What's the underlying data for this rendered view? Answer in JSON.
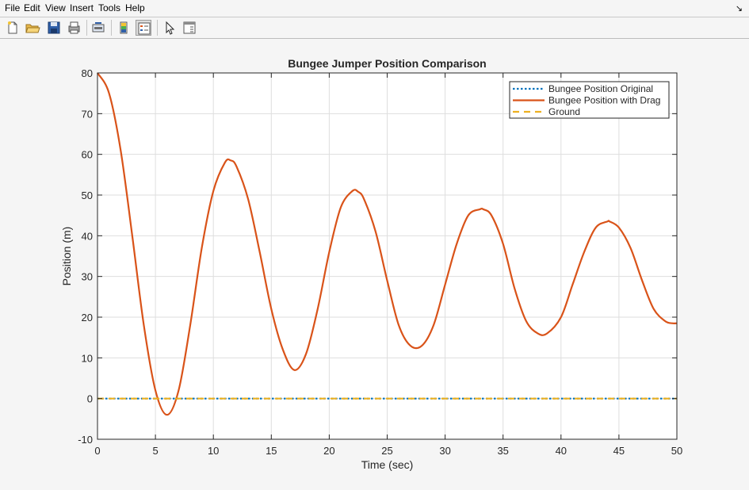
{
  "menubar": {
    "items": [
      "File",
      "Edit",
      "View",
      "Insert",
      "Tools",
      "Help"
    ]
  },
  "toolbar": {
    "buttons": [
      "new-figure-icon",
      "open-file-icon",
      "save-icon",
      "print-icon",
      "link-plot-icon",
      "colorbar-icon",
      "legend-icon",
      "pointer-icon",
      "property-inspector-icon"
    ]
  },
  "colors": {
    "original": "#0072bd",
    "drag": "#d95319",
    "ground": "#edb120"
  },
  "chart_data": {
    "type": "line",
    "title": "Bungee Jumper Position Comparison",
    "xlabel": "Time (sec)",
    "ylabel": "Position (m)",
    "xlim": [
      0,
      50
    ],
    "ylim": [
      -10,
      80
    ],
    "xticks": [
      0,
      5,
      10,
      15,
      20,
      25,
      30,
      35,
      40,
      45,
      50
    ],
    "yticks": [
      -10,
      0,
      10,
      20,
      30,
      40,
      50,
      60,
      70,
      80
    ],
    "grid": true,
    "legend_position": "top-right",
    "series": [
      {
        "name": "Bungee Position Original",
        "style": "dotted",
        "x": [
          0,
          50
        ],
        "y": [
          0,
          0
        ]
      },
      {
        "name": "Bungee Position with Drag",
        "style": "solid",
        "x": [
          0,
          1,
          2,
          3,
          4,
          5,
          6,
          7,
          8,
          9,
          10,
          11,
          11.5,
          12,
          13,
          14,
          15,
          16,
          17,
          18,
          19,
          20,
          21,
          22,
          22.5,
          23,
          24,
          25,
          26,
          27,
          28,
          29,
          30,
          31,
          32,
          33,
          33.3,
          34,
          35,
          36,
          37,
          38,
          38.8,
          40,
          41,
          42,
          43,
          44,
          44.2,
          45,
          46,
          47,
          48,
          49,
          49.6,
          50
        ],
        "y": [
          80,
          75,
          61,
          40,
          18,
          2,
          -4,
          2,
          18,
          37,
          51,
          58,
          58.5,
          57,
          49,
          36,
          22,
          12,
          7,
          11,
          22,
          36,
          47,
          51,
          50.8,
          49,
          41,
          29,
          18,
          13,
          13,
          18,
          28,
          38,
          45,
          46.5,
          46.5,
          45,
          38,
          27,
          19,
          16,
          16,
          20,
          28,
          36,
          42,
          43.5,
          43.5,
          42,
          37,
          29,
          22,
          19,
          18.5,
          18.5
        ]
      },
      {
        "name": "Ground",
        "style": "dashed",
        "x": [
          0,
          50
        ],
        "y": [
          0,
          0
        ]
      }
    ]
  }
}
